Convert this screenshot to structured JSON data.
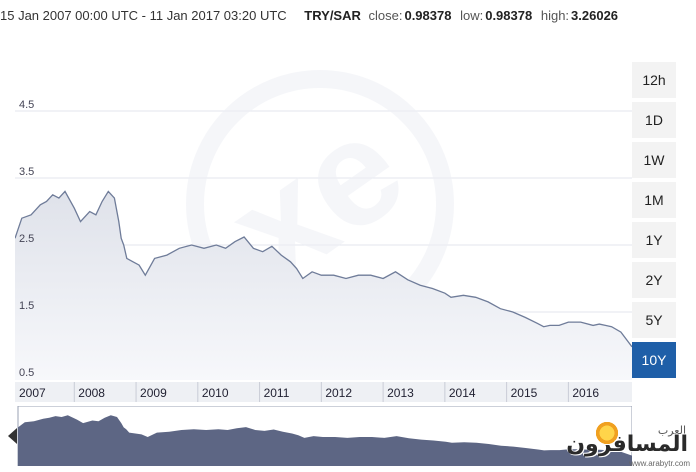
{
  "header": {
    "range": "15 Jan 2007 00:00 UTC - 11 Jan 2017 03:20 UTC",
    "pair": "TRY/SAR",
    "close_label": "close:",
    "close_value": "0.98378",
    "low_label": "low:",
    "low_value": "0.98378",
    "high_label": "high:",
    "high_value": "3.26026"
  },
  "range_buttons": [
    "12h",
    "1D",
    "1W",
    "1M",
    "1Y",
    "2Y",
    "5Y",
    "10Y"
  ],
  "active_range": "10Y",
  "watermark": {
    "small": "العرب",
    "big": "المسافرون",
    "site": "www.arabytr.com"
  },
  "colors": {
    "line": "#6f7c99",
    "area_top": "#dfe2ea",
    "nav_fill": "#5d6684",
    "active_button": "#1f5fa8"
  },
  "chart_data": {
    "type": "area",
    "title": "",
    "xlabel": "",
    "ylabel": "",
    "ylim": [
      0.5,
      5.5
    ],
    "yticks": [
      0.5,
      1.5,
      2.5,
      3.5,
      4.5
    ],
    "ytick_labels": [
      "0.5",
      "1.5",
      "2.5",
      "3.5",
      "4.5"
    ],
    "xlim": [
      2007.04,
      2017.03
    ],
    "xticks": [
      2007,
      2008,
      2009,
      2010,
      2011,
      2012,
      2013,
      2014,
      2015,
      2016
    ],
    "xtick_labels": [
      "2007",
      "2008",
      "2009",
      "2010",
      "2011",
      "2012",
      "2013",
      "2014",
      "2015",
      "2016"
    ],
    "grid": true,
    "series": [
      {
        "x": [
          2007.04,
          2007.15,
          2007.3,
          2007.45,
          2007.55,
          2007.65,
          2007.75,
          2007.85,
          2008.0,
          2008.1,
          2008.25,
          2008.35,
          2008.45,
          2008.55,
          2008.65,
          2008.72,
          2008.76,
          2008.8,
          2008.85,
          2008.95,
          2009.05,
          2009.15,
          2009.3,
          2009.5,
          2009.7,
          2009.9,
          2010.1,
          2010.3,
          2010.45,
          2010.6,
          2010.75,
          2010.9,
          2011.05,
          2011.2,
          2011.35,
          2011.5,
          2011.6,
          2011.7,
          2011.85,
          2012.0,
          2012.2,
          2012.4,
          2012.6,
          2012.8,
          2013.0,
          2013.2,
          2013.4,
          2013.6,
          2013.8,
          2014.0,
          2014.1,
          2014.3,
          2014.5,
          2014.7,
          2014.9,
          2015.1,
          2015.3,
          2015.5,
          2015.6,
          2015.7,
          2015.85,
          2016.0,
          2016.2,
          2016.4,
          2016.5,
          2016.6,
          2016.7,
          2016.85,
          2017.03
        ],
        "values": [
          2.6,
          2.9,
          2.95,
          3.1,
          3.15,
          3.25,
          3.2,
          3.3,
          3.05,
          2.85,
          3.0,
          2.95,
          3.15,
          3.3,
          3.2,
          2.85,
          2.6,
          2.5,
          2.3,
          2.25,
          2.2,
          2.05,
          2.3,
          2.35,
          2.45,
          2.5,
          2.45,
          2.5,
          2.45,
          2.55,
          2.62,
          2.45,
          2.4,
          2.48,
          2.35,
          2.25,
          2.15,
          2.0,
          2.1,
          2.05,
          2.05,
          2.0,
          2.05,
          2.05,
          2.0,
          2.1,
          1.98,
          1.9,
          1.85,
          1.78,
          1.72,
          1.75,
          1.72,
          1.65,
          1.55,
          1.5,
          1.42,
          1.33,
          1.28,
          1.3,
          1.3,
          1.35,
          1.35,
          1.3,
          1.32,
          1.3,
          1.28,
          1.2,
          0.98
        ]
      }
    ]
  }
}
